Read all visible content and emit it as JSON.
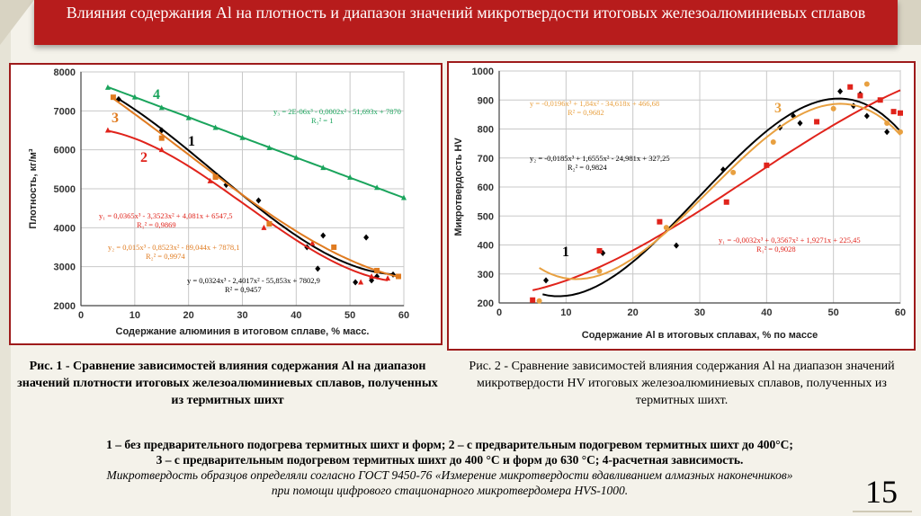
{
  "slide": {
    "title": "Влияния содержания Al на плотность и диапазон значений микротвердости итоговых железоалюминиевых сплавов",
    "page_number": "15"
  },
  "captions": {
    "fig1": "Рис. 1 - Сравнение зависимостей влияния содержания Al на диапазон значений плотности итоговых железоалюминиевых сплавов, полученных из термитных шихт",
    "fig2": "Рис. 2 - Сравнение зависимостей влияния содержания Al на диапазон значений микротвердости HV итоговых железоалюминиевых сплавов, полученных из термитных шихт."
  },
  "notes": {
    "line1": "1 – без предварительного подогрева термитных шихт и форм; 2 – с предварительным подогревом термитных шихт до 400°С;",
    "line2": "3 – с предварительным подогревом термитных шихт до 400 °С и форм до 630 °С;  4-расчетная зависимость.",
    "line3": "Микротвердость образцов определяли согласно ГОСТ 9450-76 «Измерение микротвердости вдавливанием алмазных наконечников»",
    "line4": "при помощи цифрового стационарного микротвердомера HVS-1000."
  },
  "chart_data": [
    {
      "type": "scatter",
      "xlabel": "Содержание алюминия в итоговом сплаве, % масс.",
      "ylabel": "Плотность, кг/м³",
      "xlim": [
        0,
        60
      ],
      "ylim": [
        2000,
        8000
      ],
      "xticks": [
        0,
        10,
        20,
        30,
        40,
        50,
        60
      ],
      "yticks": [
        2000,
        3000,
        4000,
        5000,
        6000,
        7000,
        8000
      ],
      "series": [
        {
          "name": "1",
          "color": "#000000",
          "marker": "diamond",
          "x": [
            7,
            15,
            27,
            33,
            42,
            44,
            45,
            51,
            53,
            54,
            55,
            58
          ],
          "y": [
            7300,
            6500,
            5100,
            4700,
            3500,
            2950,
            3800,
            2600,
            3750,
            2650,
            2750,
            2800
          ],
          "fit": [
            7802.9,
            -55.853,
            -2.4017,
            0.0324
          ],
          "equation": "y = 0,0324x³ - 2,4017x² - 55,853x + 7802,9",
          "r2": "R² = 0,9457"
        },
        {
          "name": "2",
          "color": "#e0231b",
          "marker": "triangle",
          "x": [
            5,
            15,
            24,
            34,
            43,
            52,
            54,
            57
          ],
          "y": [
            6500,
            6000,
            5200,
            4000,
            3600,
            2600,
            2750,
            2700
          ],
          "fit": [
            6547.5,
            4.081,
            -3.3523,
            0.0365
          ],
          "equation": "y₁ = 0,0365x³ - 3,3523x² + 4,081x + 6547,5",
          "r2": "R₁² = 0,9869"
        },
        {
          "name": "3",
          "color": "#e07b20",
          "marker": "square",
          "x": [
            6,
            15,
            25,
            35,
            47,
            55,
            59
          ],
          "y": [
            7350,
            6300,
            5300,
            4100,
            3500,
            2900,
            2750
          ],
          "fit": [
            7878.1,
            -89.044,
            -0.8523,
            0.015
          ],
          "equation": "y₂ = 0,015x³ - 0,8523x² - 89,044x + 7878,1",
          "r2": "R₂² = 0,9974"
        },
        {
          "name": "4",
          "color": "#1aa45c",
          "marker": "triangle",
          "x": [
            5,
            10,
            15,
            20,
            25,
            30,
            35,
            40,
            45,
            50,
            55,
            60
          ],
          "y": [
            7600,
            7350,
            7080,
            6820,
            6570,
            6310,
            6050,
            5800,
            5540,
            5290,
            5030,
            4770
          ],
          "fit": [
            7870,
            -51.693,
            -0.0002,
            2e-06
          ],
          "equation": "y₃ = 2E-06x³ - 0,0002x² - 51,693x + 7870",
          "r2": "R₃² = 1"
        }
      ]
    },
    {
      "type": "scatter",
      "xlabel": "Содержание Al в итоговых сплавах, % по массе",
      "ylabel": "Микротвердость HV",
      "xlim": [
        0,
        60
      ],
      "ylim": [
        200,
        1000
      ],
      "xticks": [
        0,
        10,
        20,
        30,
        40,
        50,
        60
      ],
      "yticks": [
        200,
        300,
        400,
        500,
        600,
        700,
        800,
        900,
        1000
      ],
      "series": [
        {
          "name": "1",
          "color": "#000000",
          "marker": "diamond",
          "x": [
            7,
            15.5,
            26.5,
            33.5,
            42,
            44,
            45,
            51,
            53,
            54,
            55,
            58
          ],
          "y": [
            278,
            372,
            398,
            660,
            805,
            845,
            820,
            930,
            880,
            920,
            845,
            790
          ],
          "fit": [
            327.25,
            -24.981,
            1.6555,
            -0.0185
          ],
          "equation": "y₂ = -0,0185x³ + 1,6555x² - 24,981x + 327,25",
          "r2": "R₂² = 0,9824"
        },
        {
          "name": "2",
          "color": "#e0231b",
          "marker": "square",
          "x": [
            5,
            15,
            24,
            34,
            40,
            47.5,
            52.5,
            54,
            57,
            59,
            60
          ],
          "y": [
            210,
            380,
            480,
            548,
            675,
            825,
            945,
            915,
            900,
            860,
            855
          ],
          "fit": [
            225.45,
            1.9271,
            0.3567,
            -0.0032
          ],
          "equation": "y₁ = -0,0032x³ + 0,3567x² + 1,9271x + 225,45",
          "r2": "R₁² = 0,9028"
        },
        {
          "name": "3",
          "color": "#e8a040",
          "marker": "circle",
          "x": [
            6,
            15,
            25,
            35,
            41,
            50,
            55,
            58,
            60
          ],
          "y": [
            207,
            310,
            460,
            650,
            755,
            870,
            955,
            820,
            790
          ],
          "fit": [
            466.68,
            -34.618,
            1.84,
            -0.0196
          ],
          "equation": "y = -0,0196x³ + 1,84x² - 34,618x + 466,68",
          "r2": "R² = 0,9682"
        }
      ]
    }
  ]
}
